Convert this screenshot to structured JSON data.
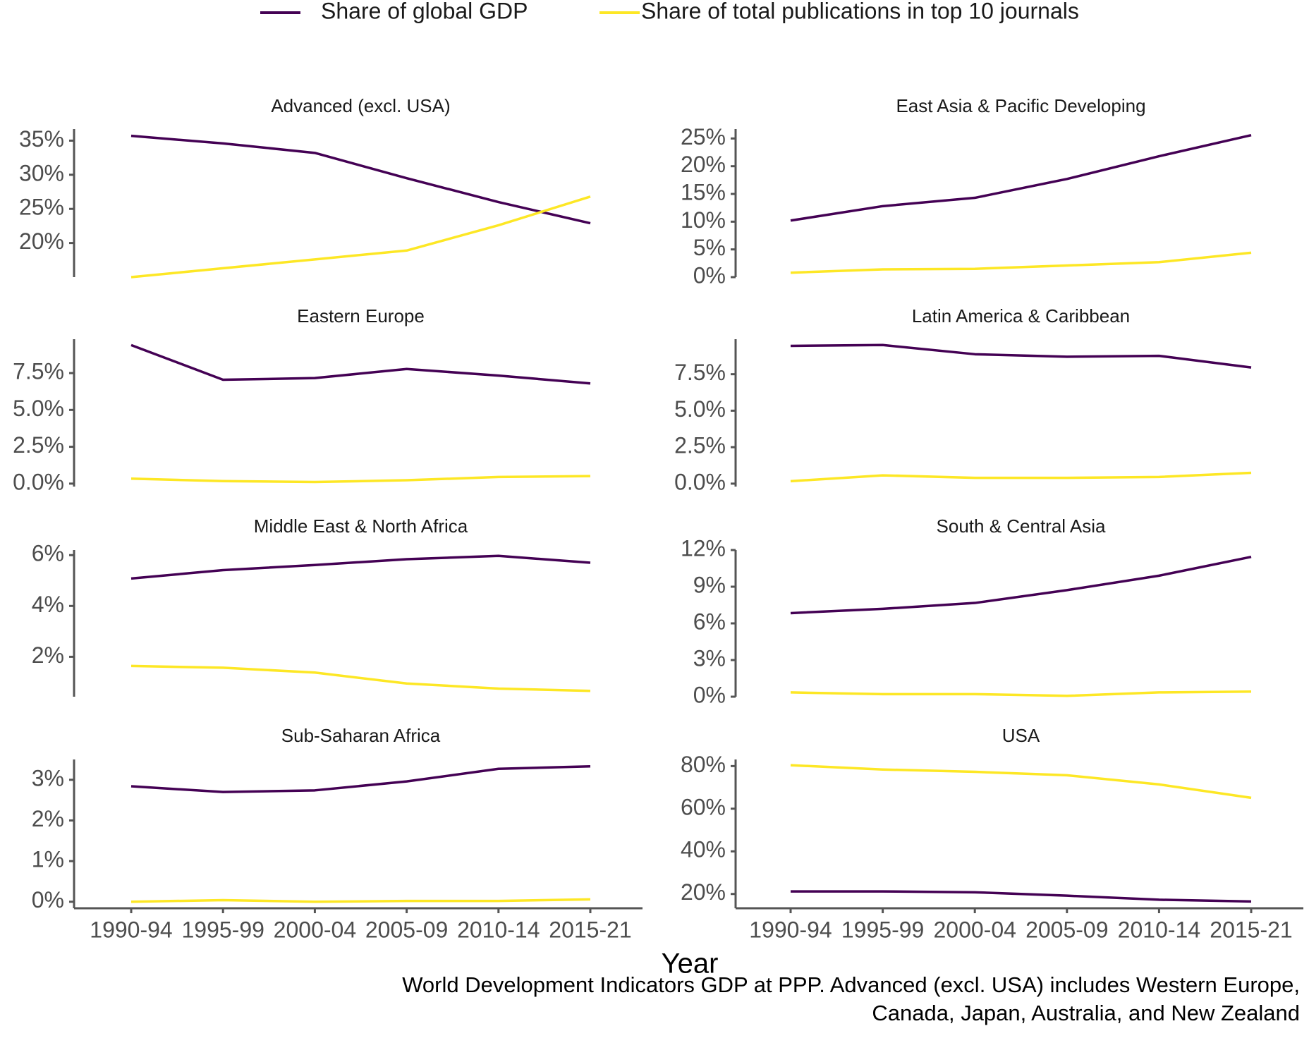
{
  "legend": [
    {
      "name": "Share of global GDP",
      "color": "#440154"
    },
    {
      "name": "Share of total publications in top 10 journals",
      "color": "#fde725"
    }
  ],
  "categories": [
    "1990-94",
    "1995-99",
    "2000-04",
    "2005-09",
    "2010-14",
    "2015-21"
  ],
  "xlabel": "Year",
  "caption": [
    "World Development Indicators GDP at PPP. Advanced (excl. USA) includes Western Europe,",
    "Canada, Japan, Australia, and New Zealand"
  ],
  "chart_data": [
    {
      "type": "line",
      "title": "Advanced (excl. USA)",
      "ylim": [
        15,
        36.7
      ],
      "yticks": [
        {
          "value": 20,
          "label": "20%"
        },
        {
          "value": 25,
          "label": "25%"
        },
        {
          "value": 30,
          "label": "30%"
        },
        {
          "value": 35,
          "label": "35%"
        }
      ],
      "series": [
        {
          "values": [
            35.7,
            34.6,
            33.2,
            29.5,
            26.0,
            22.9
          ]
        },
        {
          "values": [
            15.0,
            16.3,
            17.6,
            18.9,
            22.6,
            26.8
          ]
        }
      ]
    },
    {
      "type": "line",
      "title": "East Asia & Pacific Developing",
      "ylim": [
        0,
        26.7
      ],
      "yticks": [
        {
          "value": 0,
          "label": "0%"
        },
        {
          "value": 5,
          "label": "5%"
        },
        {
          "value": 10,
          "label": "10%"
        },
        {
          "value": 15,
          "label": "15%"
        },
        {
          "value": 20,
          "label": "20%"
        },
        {
          "value": 25,
          "label": "25%"
        }
      ],
      "series": [
        {
          "values": [
            10.2,
            12.8,
            14.3,
            17.7,
            21.8,
            25.6
          ]
        },
        {
          "values": [
            0.8,
            1.4,
            1.5,
            2.1,
            2.7,
            4.4
          ]
        }
      ]
    },
    {
      "type": "line",
      "title": "Eastern Europe",
      "ylim": [
        -0.2,
        9.8
      ],
      "yticks": [
        {
          "value": 0,
          "label": "0.0%"
        },
        {
          "value": 2.5,
          "label": "2.5%"
        },
        {
          "value": 5,
          "label": "5.0%"
        },
        {
          "value": 7.5,
          "label": "7.5%"
        }
      ],
      "series": [
        {
          "values": [
            9.4,
            7.05,
            7.16,
            7.78,
            7.33,
            6.8
          ]
        },
        {
          "values": [
            0.34,
            0.17,
            0.11,
            0.23,
            0.45,
            0.51
          ]
        }
      ]
    },
    {
      "type": "line",
      "title": "Latin America & Caribbean",
      "ylim": [
        -0.2,
        9.9
      ],
      "yticks": [
        {
          "value": 0,
          "label": "0.0%"
        },
        {
          "value": 2.5,
          "label": "2.5%"
        },
        {
          "value": 5,
          "label": "5.0%"
        },
        {
          "value": 7.5,
          "label": "7.5%"
        }
      ],
      "series": [
        {
          "values": [
            9.44,
            9.5,
            8.87,
            8.7,
            8.76,
            7.96
          ]
        },
        {
          "values": [
            0.17,
            0.57,
            0.4,
            0.4,
            0.46,
            0.74
          ]
        }
      ]
    },
    {
      "type": "line",
      "title": "Middle East & North Africa",
      "ylim": [
        0.43,
        6.2
      ],
      "yticks": [
        {
          "value": 2,
          "label": "2%"
        },
        {
          "value": 4,
          "label": "4%"
        },
        {
          "value": 6,
          "label": "6%"
        }
      ],
      "series": [
        {
          "values": [
            5.08,
            5.41,
            5.61,
            5.84,
            5.97,
            5.7
          ]
        },
        {
          "values": [
            1.64,
            1.57,
            1.38,
            0.95,
            0.75,
            0.66
          ]
        }
      ]
    },
    {
      "type": "line",
      "title": "South & Central Asia",
      "ylim": [
        0,
        12
      ],
      "yticks": [
        {
          "value": 0,
          "label": "0%"
        },
        {
          "value": 3,
          "label": "3%"
        },
        {
          "value": 6,
          "label": "6%"
        },
        {
          "value": 9,
          "label": "9%"
        },
        {
          "value": 12,
          "label": "12%"
        }
      ],
      "series": [
        {
          "values": [
            6.84,
            7.19,
            7.67,
            8.72,
            9.9,
            11.44
          ]
        },
        {
          "values": [
            0.35,
            0.21,
            0.21,
            0.07,
            0.35,
            0.42
          ]
        }
      ]
    },
    {
      "type": "line",
      "title": "Sub-Saharan Africa",
      "ylim": [
        -0.16,
        3.5
      ],
      "yticks": [
        {
          "value": 0,
          "label": "0%"
        },
        {
          "value": 1,
          "label": "1%"
        },
        {
          "value": 2,
          "label": "2%"
        },
        {
          "value": 3,
          "label": "3%"
        }
      ],
      "series": [
        {
          "values": [
            2.84,
            2.7,
            2.74,
            2.96,
            3.27,
            3.33
          ]
        },
        {
          "values": [
            0,
            0.04,
            0,
            0.02,
            0.02,
            0.06
          ]
        }
      ]
    },
    {
      "type": "line",
      "title": "USA",
      "ylim": [
        13.3,
        83.1
      ],
      "yticks": [
        {
          "value": 20,
          "label": "20%"
        },
        {
          "value": 40,
          "label": "40%"
        },
        {
          "value": 60,
          "label": "60%"
        },
        {
          "value": 80,
          "label": "80%"
        }
      ],
      "series": [
        {
          "values": [
            21.2,
            21.2,
            20.8,
            19.2,
            17.3,
            16.5
          ]
        },
        {
          "values": [
            80.4,
            78.4,
            77.3,
            75.7,
            71.4,
            65.1
          ]
        }
      ]
    }
  ]
}
